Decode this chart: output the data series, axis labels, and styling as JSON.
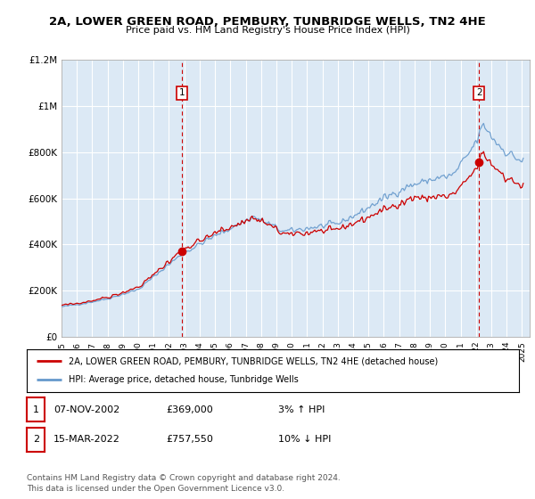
{
  "title": "2A, LOWER GREEN ROAD, PEMBURY, TUNBRIDGE WELLS, TN2 4HE",
  "subtitle": "Price paid vs. HM Land Registry's House Price Index (HPI)",
  "background_color": "#dce9f5",
  "plot_bg_color": "#dce9f5",
  "ylim": [
    0,
    1200000
  ],
  "yticks": [
    0,
    200000,
    400000,
    600000,
    800000,
    1000000,
    1200000
  ],
  "ytick_labels": [
    "£0",
    "£200K",
    "£400K",
    "£600K",
    "£800K",
    "£1M",
    "£1.2M"
  ],
  "hpi_color": "#6699cc",
  "price_color": "#cc0000",
  "vline_color": "#cc0000",
  "sale1_x": 2002.85,
  "sale1_y": 369000,
  "sale2_x": 2022.2,
  "sale2_y": 757550,
  "legend_line1": "2A, LOWER GREEN ROAD, PEMBURY, TUNBRIDGE WELLS, TN2 4HE (detached house)",
  "legend_line2": "HPI: Average price, detached house, Tunbridge Wells",
  "table_row1": [
    "1",
    "07-NOV-2002",
    "£369,000",
    "3% ↑ HPI"
  ],
  "table_row2": [
    "2",
    "15-MAR-2022",
    "£757,550",
    "10% ↓ HPI"
  ],
  "footer": "Contains HM Land Registry data © Crown copyright and database right 2024.\nThis data is licensed under the Open Government Licence v3.0.",
  "xmin": 1995,
  "xmax": 2025.5
}
